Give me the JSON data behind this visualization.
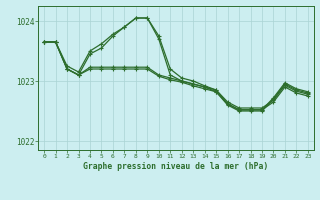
{
  "title": "Graphe pression niveau de la mer (hPa)",
  "background_color": "#cceef0",
  "grid_color": "#aad4d4",
  "line_color": "#2d6e2d",
  "xlim_min": -0.5,
  "xlim_max": 23.5,
  "ylim_min": 1021.85,
  "ylim_max": 1024.25,
  "yticks": [
    1022,
    1023,
    1024
  ],
  "xticks": [
    0,
    1,
    2,
    3,
    4,
    5,
    6,
    7,
    8,
    9,
    10,
    11,
    12,
    13,
    14,
    15,
    16,
    17,
    18,
    19,
    20,
    21,
    22,
    23
  ],
  "line1": [
    1023.65,
    1023.65,
    1023.2,
    1023.1,
    1023.45,
    1023.55,
    1023.75,
    1023.9,
    1024.05,
    1024.05,
    1023.7,
    1023.1,
    1023.0,
    1022.95,
    1022.9,
    1022.82,
    1022.6,
    1022.5,
    1022.5,
    1022.5,
    1022.7,
    1022.95,
    1022.85,
    1022.8
  ],
  "line2": [
    1023.65,
    1023.65,
    1023.25,
    1023.15,
    1023.5,
    1023.62,
    1023.78,
    1023.9,
    1024.05,
    1024.05,
    1023.75,
    1023.2,
    1023.05,
    1023.0,
    1022.92,
    1022.85,
    1022.62,
    1022.52,
    1022.52,
    1022.52,
    1022.72,
    1022.97,
    1022.87,
    1022.82
  ],
  "line3": [
    1023.65,
    1023.65,
    1023.2,
    1023.1,
    1023.23,
    1023.23,
    1023.23,
    1023.23,
    1023.23,
    1023.23,
    1023.1,
    1023.05,
    1023.0,
    1022.95,
    1022.9,
    1022.85,
    1022.65,
    1022.55,
    1022.55,
    1022.55,
    1022.68,
    1022.93,
    1022.83,
    1022.78
  ],
  "line4": [
    1023.65,
    1023.65,
    1023.2,
    1023.1,
    1023.2,
    1023.2,
    1023.2,
    1023.2,
    1023.2,
    1023.2,
    1023.08,
    1023.02,
    1022.98,
    1022.92,
    1022.87,
    1022.82,
    1022.62,
    1022.52,
    1022.52,
    1022.52,
    1022.65,
    1022.9,
    1022.8,
    1022.75
  ]
}
